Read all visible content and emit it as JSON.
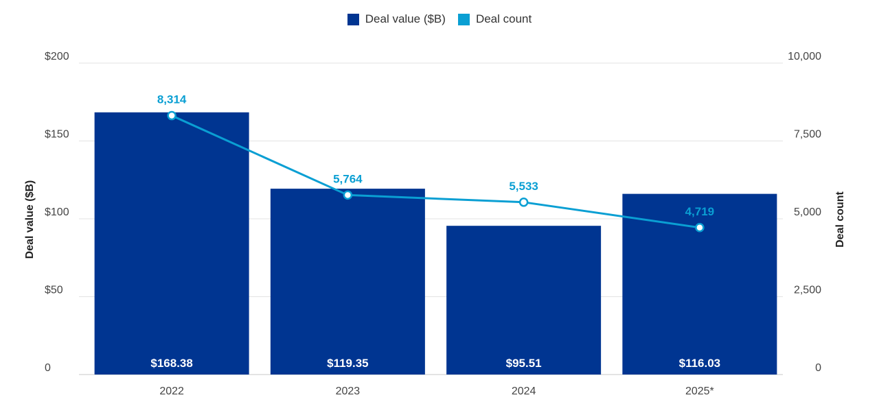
{
  "chart_data": {
    "type": "bar",
    "categories": [
      "2022",
      "2023",
      "2024",
      "2025*"
    ],
    "series": [
      {
        "name": "Deal value ($B)",
        "type": "bar",
        "axis": "left",
        "values": [
          168.38,
          119.35,
          95.51,
          116.03
        ],
        "labels": [
          "$168.38",
          "$119.35",
          "$95.51",
          "$116.03"
        ],
        "color": "#003591"
      },
      {
        "name": "Deal count",
        "type": "line",
        "axis": "right",
        "values": [
          8314,
          5764,
          5533,
          4719
        ],
        "labels": [
          "8,314",
          "5,764",
          "5,533",
          "4,719"
        ],
        "color": "#0a9fd3"
      }
    ],
    "ylabel_left": "Deal value ($B)",
    "ylabel_right": "Deal count",
    "ylim_left": [
      0,
      200
    ],
    "ylim_right": [
      0,
      10000
    ],
    "yticks_left": [
      "0",
      "$50",
      "$100",
      "$150",
      "$200"
    ],
    "yticks_right": [
      "0",
      "2,500",
      "5,000",
      "7,500",
      "10,000"
    ],
    "grid": true,
    "legend": "top-center"
  }
}
